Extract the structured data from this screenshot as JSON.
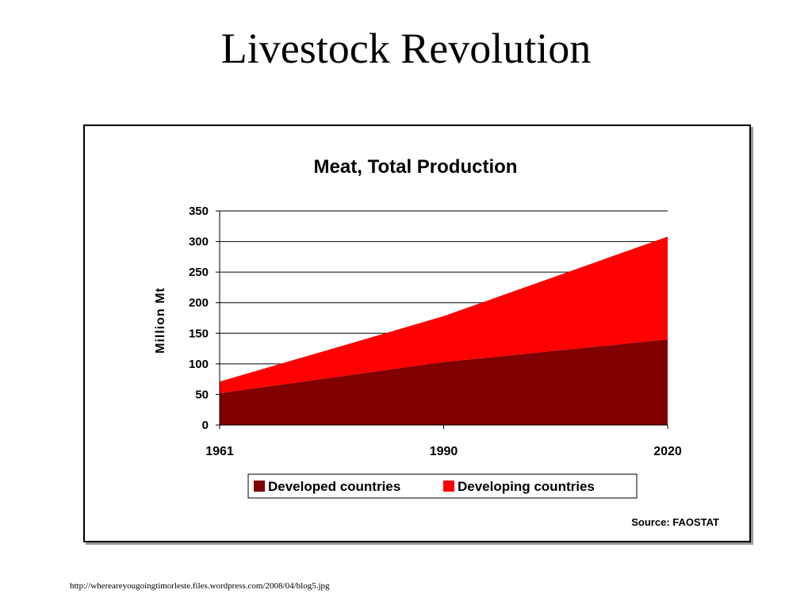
{
  "slide": {
    "title": "Livestock Revolution",
    "footer_url": "http://whereareyougoingtimorleste.files.wordpress.com/2008/04/blog5.jpg"
  },
  "chart_data": {
    "type": "area",
    "stacked": true,
    "title": "Meat, Total Production",
    "xlabel": "",
    "ylabel": "Million Mt",
    "categories": [
      "1961",
      "1990",
      "2020"
    ],
    "series": [
      {
        "name": "Developed countries",
        "values": [
          52,
          103,
          140
        ],
        "color": "#800000"
      },
      {
        "name": "Developing countries",
        "values": [
          19,
          75,
          168
        ],
        "color": "#ff0000"
      }
    ],
    "ylim": [
      0,
      350
    ],
    "yticks": [
      "0",
      "50",
      "100",
      "150",
      "200",
      "250",
      "300",
      "350"
    ],
    "grid": true,
    "legend_position": "bottom",
    "source_note": "Source: FAOSTAT"
  }
}
